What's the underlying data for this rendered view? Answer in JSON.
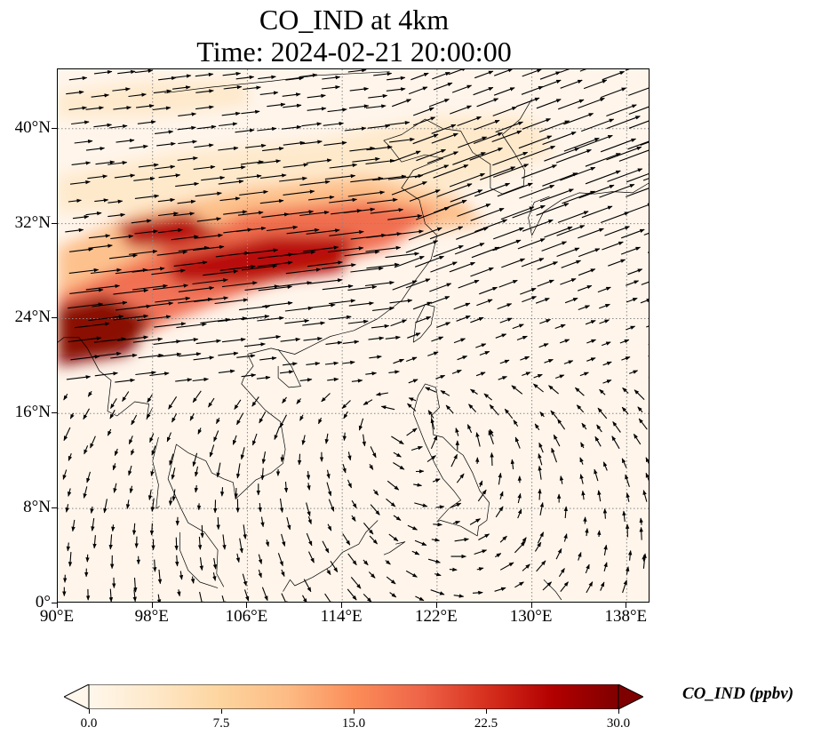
{
  "title": {
    "line1": "CO_IND at 4km",
    "line2": "Time: 2024-02-21 20:00:00"
  },
  "map": {
    "projection": "PlateCarree",
    "extent": {
      "lon": [
        90,
        140
      ],
      "lat": [
        0,
        45
      ]
    },
    "gridlines": "dotted gray",
    "coastlines": true,
    "borders": true,
    "field": "CO_IND",
    "wind_vectors": true,
    "colormap": "OrRd",
    "y_ticks": [
      {
        "value": 0,
        "label": "0°"
      },
      {
        "value": 8,
        "label": "8°N"
      },
      {
        "value": 16,
        "label": "16°N"
      },
      {
        "value": 24,
        "label": "24°N"
      },
      {
        "value": 32,
        "label": "32°N"
      },
      {
        "value": 40,
        "label": "40°N"
      }
    ],
    "x_ticks": [
      {
        "value": 90,
        "label": "90°E"
      },
      {
        "value": 98,
        "label": "98°E"
      },
      {
        "value": 106,
        "label": "106°E"
      },
      {
        "value": 114,
        "label": "114°E"
      },
      {
        "value": 122,
        "label": "122°E"
      },
      {
        "value": 130,
        "label": "130°E"
      },
      {
        "value": 138,
        "label": "138°E"
      }
    ]
  },
  "colorbar": {
    "label": "CO_IND (ppbv)",
    "min": 0,
    "max": 30,
    "extend": "both",
    "ticks": [
      "0.0",
      "7.5",
      "15.0",
      "22.5",
      "30.0"
    ],
    "colors": [
      "#fff7ec",
      "#fee8c8",
      "#fdd49e",
      "#fdbb84",
      "#fc8d59",
      "#ef6548",
      "#d7301f",
      "#b30000",
      "#7f0000"
    ]
  }
}
